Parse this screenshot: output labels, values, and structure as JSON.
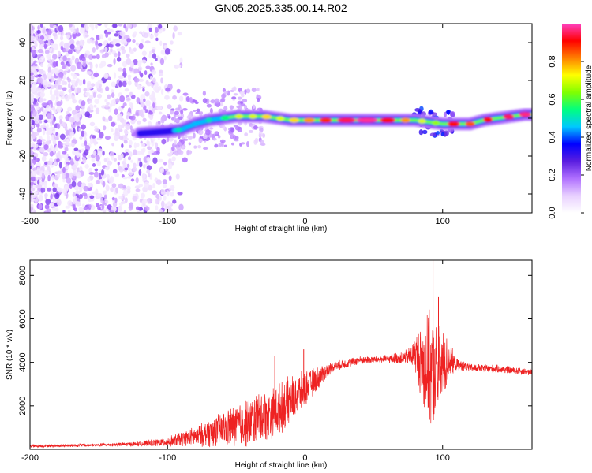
{
  "title": "GN05.2025.335.00.14.R02",
  "colors": {
    "series_line": "#ee2222",
    "colorbar_stops": [
      "#ffffff",
      "#e8d0ff",
      "#b070ff",
      "#5a1ee0",
      "#0000ff",
      "#00c8ff",
      "#00ff80",
      "#80ff00",
      "#ffff00",
      "#ff8000",
      "#ff0000",
      "#ff40c0"
    ]
  },
  "chart_data": [
    {
      "type": "heatmap",
      "name": "spectrogram",
      "xlabel": "Height of straight line (km)",
      "ylabel": "Frequency (Hz)",
      "xlim": [
        -200,
        165
      ],
      "ylim": [
        -50,
        50
      ],
      "xticks": [
        -200,
        -100,
        0,
        100
      ],
      "xtick_labels": [
        "-200",
        "-100",
        "0",
        "100"
      ],
      "yticks": [
        40,
        20,
        0,
        -20,
        -40
      ],
      "ytick_labels": [
        "40",
        "20",
        "0",
        "-20",
        "-40"
      ],
      "ridge": {
        "description": "dominant frequency ridge (Hz) vs height (km)",
        "x": [
          -120,
          -100,
          -90,
          -80,
          -70,
          -60,
          -50,
          -40,
          -30,
          -20,
          -10,
          0,
          20,
          40,
          60,
          80,
          90,
          100,
          110,
          120,
          130,
          140,
          150,
          160,
          165
        ],
        "y": [
          -8,
          -7,
          -6,
          -3,
          -1,
          0,
          1,
          1,
          1,
          0,
          -1,
          -1,
          -1,
          -1,
          -1,
          -1,
          -2,
          -3,
          -3,
          -3,
          -1,
          0,
          1,
          2,
          2
        ]
      },
      "colorbar": {
        "label": "Normalized spectral amplitude",
        "range": [
          0.0,
          1.0
        ],
        "ticks": [
          0.0,
          0.2,
          0.4,
          0.6,
          0.8
        ],
        "tick_labels": [
          "0.0",
          "0.2",
          "0.4",
          "0.6",
          "0.8"
        ]
      }
    },
    {
      "type": "line",
      "name": "snr",
      "xlabel": "Height of straight line (km)",
      "ylabel": "SNR (10 * v/v)",
      "xlim": [
        -200,
        165
      ],
      "ylim": [
        0,
        8700
      ],
      "xticks": [
        -200,
        -100,
        0,
        100
      ],
      "xtick_labels": [
        "-200",
        "-100",
        "0",
        "100"
      ],
      "yticks": [
        2000,
        4000,
        6000,
        8000
      ],
      "ytick_labels": [
        "2000",
        "4000",
        "6000",
        "8000"
      ],
      "envelope": {
        "description": "approximate mean SNR and noise amplitude vs height",
        "x": [
          -200,
          -150,
          -120,
          -100,
          -80,
          -60,
          -40,
          -20,
          -10,
          0,
          20,
          40,
          60,
          75,
          80,
          85,
          90,
          95,
          100,
          105,
          110,
          120,
          140,
          165
        ],
        "mean": [
          150,
          200,
          250,
          350,
          600,
          900,
          1300,
          1800,
          2300,
          2800,
          3800,
          4100,
          4150,
          4250,
          4400,
          4000,
          3500,
          3500,
          3800,
          4100,
          3900,
          3750,
          3700,
          3550
        ],
        "amp": [
          80,
          80,
          120,
          250,
          500,
          900,
          1300,
          1300,
          1200,
          900,
          250,
          200,
          200,
          400,
          900,
          2000,
          3000,
          2500,
          2000,
          900,
          300,
          200,
          200,
          180
        ]
      },
      "peaks": [
        {
          "x": -22,
          "y": 4300
        },
        {
          "x": -1,
          "y": 4600
        },
        {
          "x": 93,
          "y": 8700
        },
        {
          "x": 97,
          "y": 7000
        }
      ]
    }
  ]
}
